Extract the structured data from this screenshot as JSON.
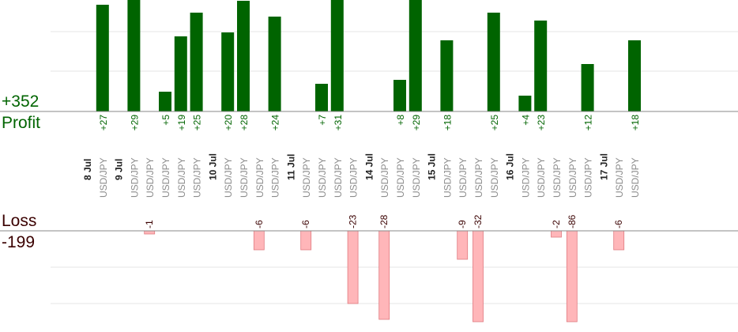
{
  "summary": {
    "profit_total": "+352",
    "profit_label": "Profit",
    "loss_label": "Loss",
    "loss_total": "-199"
  },
  "colors": {
    "profit_bar": "#006400",
    "profit_text": "#006400",
    "loss_bar": "#ffb6b9",
    "loss_border": "#e07a80",
    "loss_text": "#3a0000",
    "date_text": "#222222",
    "pair_text": "#8c8c8c",
    "grid": "#e6e6e6",
    "axis": "#888888"
  },
  "chart_data": {
    "type": "bar",
    "pair": "USD/JPY",
    "profit_axis_max": 60,
    "loss_axis_max": 100,
    "columns": [
      {
        "date": "8 Jul"
      },
      {
        "pair": "USD/JPY",
        "profit": 27
      },
      {
        "date": "9 Jul"
      },
      {
        "pair": "USD/JPY",
        "profit": 29
      },
      {
        "pair": "USD/JPY",
        "loss": -1
      },
      {
        "pair": "USD/JPY",
        "profit": 5
      },
      {
        "pair": "USD/JPY",
        "profit": 19
      },
      {
        "pair": "USD/JPY",
        "profit": 25
      },
      {
        "date": "10 Jul"
      },
      {
        "pair": "USD/JPY",
        "profit": 20
      },
      {
        "pair": "USD/JPY",
        "profit": 28
      },
      {
        "pair": "USD/JPY",
        "loss": -6
      },
      {
        "pair": "USD/JPY",
        "profit": 24
      },
      {
        "date": "11 Jul"
      },
      {
        "pair": "USD/JPY",
        "loss": -6
      },
      {
        "pair": "USD/JPY",
        "profit": 7
      },
      {
        "pair": "USD/JPY",
        "profit": 31
      },
      {
        "pair": "USD/JPY",
        "loss": -23
      },
      {
        "date": "14 Jul"
      },
      {
        "pair": "USD/JPY",
        "loss": -28
      },
      {
        "pair": "USD/JPY",
        "profit": 8
      },
      {
        "pair": "USD/JPY",
        "profit": 29
      },
      {
        "date": "15 Jul"
      },
      {
        "pair": "USD/JPY",
        "profit": 18
      },
      {
        "pair": "USD/JPY",
        "loss": -9
      },
      {
        "pair": "USD/JPY",
        "loss": -32
      },
      {
        "pair": "USD/JPY",
        "profit": 25
      },
      {
        "date": "16 Jul"
      },
      {
        "pair": "USD/JPY",
        "profit": 4
      },
      {
        "pair": "USD/JPY",
        "profit": 23
      },
      {
        "pair": "USD/JPY",
        "loss": -2
      },
      {
        "pair": "USD/JPY",
        "loss": -86
      },
      {
        "pair": "USD/JPY",
        "profit": 12
      },
      {
        "date": "17 Jul"
      },
      {
        "pair": "USD/JPY",
        "loss": -6
      },
      {
        "pair": "USD/JPY",
        "profit": 18
      }
    ]
  }
}
